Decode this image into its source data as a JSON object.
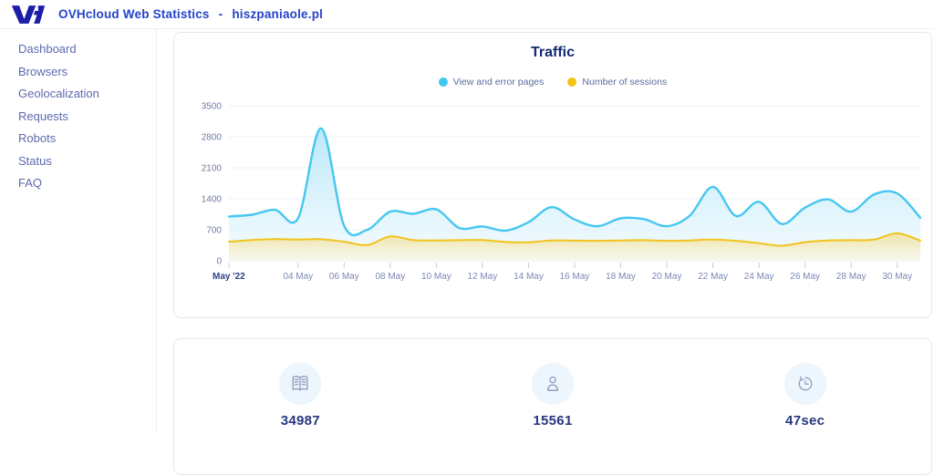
{
  "header": {
    "brand": "OVHcloud Web Statistics",
    "separator": "-",
    "domain": "hiszpaniaole.pl"
  },
  "sidebar": {
    "items": [
      {
        "label": "Dashboard"
      },
      {
        "label": "Browsers"
      },
      {
        "label": "Geolocalization"
      },
      {
        "label": "Requests"
      },
      {
        "label": "Robots"
      },
      {
        "label": "Status"
      },
      {
        "label": "FAQ"
      }
    ]
  },
  "chart_card": {
    "title": "Traffic",
    "legend": [
      {
        "label": "View and error pages",
        "color": "#3fc6f1"
      },
      {
        "label": "Number of sessions",
        "color": "#f5c413"
      }
    ]
  },
  "chart_data": {
    "type": "area",
    "title": "Traffic",
    "xlabel": "",
    "ylabel": "",
    "grid": true,
    "legend_position": "top",
    "ylim": [
      0,
      3500
    ],
    "yticks": [
      0,
      700,
      1400,
      2100,
      2800,
      3500
    ],
    "categories": [
      "01 May",
      "02 May",
      "03 May",
      "04 May",
      "05 May",
      "06 May",
      "07 May",
      "08 May",
      "09 May",
      "10 May",
      "11 May",
      "12 May",
      "13 May",
      "14 May",
      "15 May",
      "16 May",
      "17 May",
      "18 May",
      "19 May",
      "20 May",
      "21 May",
      "22 May",
      "23 May",
      "24 May",
      "25 May",
      "26 May",
      "27 May",
      "28 May",
      "29 May",
      "30 May",
      "31 May"
    ],
    "xticks": [
      {
        "day": 1,
        "label": "May '22",
        "bold": true
      },
      {
        "day": 4,
        "label": "04 May"
      },
      {
        "day": 6,
        "label": "06 May"
      },
      {
        "day": 8,
        "label": "08 May"
      },
      {
        "day": 10,
        "label": "10 May"
      },
      {
        "day": 12,
        "label": "12 May"
      },
      {
        "day": 14,
        "label": "14 May"
      },
      {
        "day": 16,
        "label": "16 May"
      },
      {
        "day": 18,
        "label": "18 May"
      },
      {
        "day": 20,
        "label": "20 May"
      },
      {
        "day": 22,
        "label": "22 May"
      },
      {
        "day": 24,
        "label": "24 May"
      },
      {
        "day": 26,
        "label": "26 May"
      },
      {
        "day": 28,
        "label": "28 May"
      },
      {
        "day": 30,
        "label": "30 May"
      }
    ],
    "series": [
      {
        "name": "View and error pages",
        "color": "#45c7f0",
        "values": [
          1000,
          1040,
          1150,
          960,
          2990,
          790,
          700,
          1110,
          1060,
          1160,
          740,
          775,
          680,
          870,
          1210,
          930,
          780,
          960,
          940,
          780,
          1020,
          1670,
          1010,
          1330,
          830,
          1200,
          1385,
          1110,
          1500,
          1520,
          970
        ]
      },
      {
        "name": "Number of sessions",
        "color": "#f0c41b",
        "values": [
          430,
          470,
          490,
          480,
          485,
          430,
          355,
          550,
          465,
          460,
          465,
          470,
          425,
          415,
          460,
          455,
          450,
          460,
          465,
          450,
          460,
          480,
          450,
          395,
          340,
          420,
          460,
          465,
          480,
          620,
          455
        ]
      }
    ],
    "colors": {
      "grid": "#eef0f5",
      "ytick_text": "#6f7aa6",
      "xtick_text": "#7c87b4",
      "xtick_bold_text": "#2f4085",
      "tick_mark": "#c9ccd8"
    }
  },
  "stats_card": {
    "items": [
      {
        "icon": "book-open-icon",
        "value": "34987"
      },
      {
        "icon": "person-icon",
        "value": "15561"
      },
      {
        "icon": "history-clock-icon",
        "value": "47sec"
      }
    ]
  }
}
